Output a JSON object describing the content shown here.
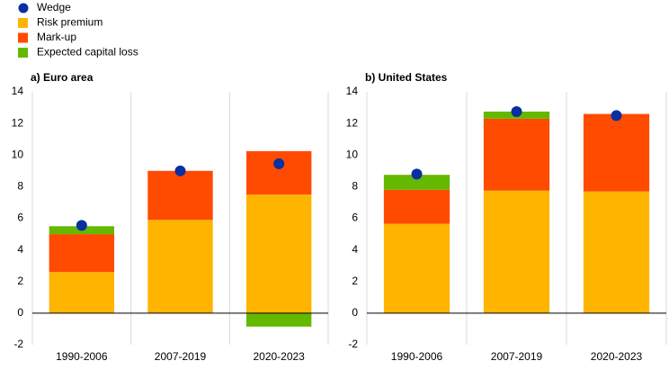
{
  "legend": [
    {
      "name": "Wedge",
      "color": "#0a2fa0",
      "marker": "dot"
    },
    {
      "name": "Risk premium",
      "color": "#ffb400",
      "marker": "square"
    },
    {
      "name": "Mark-up",
      "color": "#ff4b00",
      "marker": "square"
    },
    {
      "name": "Expected capital loss",
      "color": "#65b800",
      "marker": "square"
    }
  ],
  "chart_data": [
    {
      "type": "bar",
      "stacked": true,
      "title": "a) Euro area",
      "categories": [
        "1990-2006",
        "2007-2019",
        "2020-2023"
      ],
      "ylim": [
        -2,
        14
      ],
      "yticks": [
        -2,
        0,
        2,
        4,
        6,
        8,
        10,
        12,
        14
      ],
      "points": {
        "legend": 0,
        "values": [
          5.55,
          9.0,
          9.45
        ]
      },
      "series": [
        {
          "legend": 1,
          "values": [
            2.6,
            5.9,
            7.5
          ]
        },
        {
          "legend": 2,
          "values": [
            2.4,
            3.1,
            2.75
          ]
        },
        {
          "legend": 3,
          "values": [
            0.5,
            0,
            -0.85
          ]
        }
      ]
    },
    {
      "type": "bar",
      "stacked": true,
      "title": "b) United States",
      "categories": [
        "1990-2006",
        "2007-2019",
        "2020-2023"
      ],
      "ylim": [
        -2,
        14
      ],
      "yticks": [
        -2,
        0,
        2,
        4,
        6,
        8,
        10,
        12,
        14
      ],
      "points": {
        "legend": 0,
        "values": [
          8.8,
          12.75,
          12.5
        ]
      },
      "series": [
        {
          "legend": 1,
          "values": [
            5.65,
            7.75,
            7.7
          ]
        },
        {
          "legend": 2,
          "values": [
            2.15,
            4.55,
            4.9
          ]
        },
        {
          "legend": 3,
          "values": [
            0.95,
            0.45,
            0
          ]
        }
      ]
    }
  ]
}
